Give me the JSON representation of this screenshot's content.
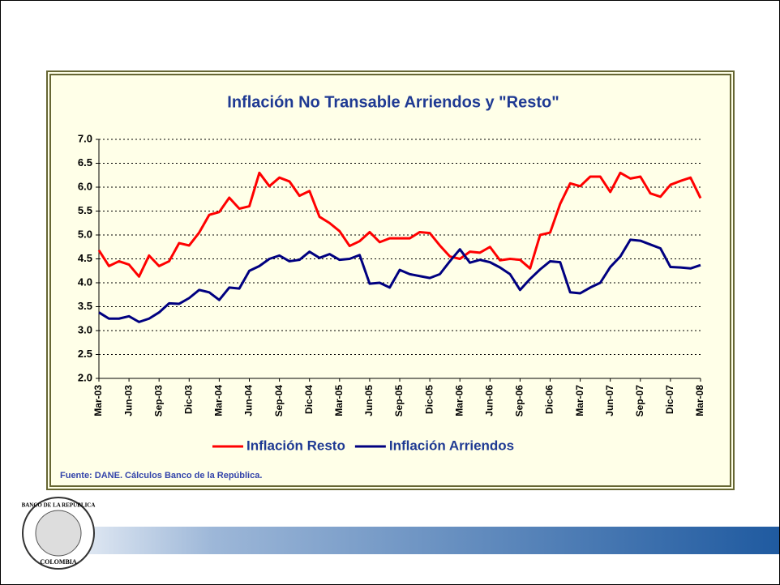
{
  "chart_data": {
    "type": "line",
    "title": "Inflación No Transable Arriendos y \"Resto\"",
    "categories": [
      "Mar-03",
      null,
      null,
      "Jun-03",
      null,
      null,
      "Sep-03",
      null,
      null,
      "Dic-03",
      null,
      null,
      "Mar-04",
      null,
      null,
      "Jun-04",
      null,
      null,
      "Sep-04",
      null,
      null,
      "Dic-04",
      null,
      null,
      "Mar-05",
      null,
      null,
      "Jun-05",
      null,
      null,
      "Sep-05",
      null,
      null,
      "Dic-05",
      null,
      null,
      "Mar-06",
      null,
      null,
      "Jun-06",
      null,
      null,
      "Sep-06",
      null,
      null,
      "Dic-06",
      null,
      null,
      "Mar-07",
      null,
      null,
      "Jun-07",
      null,
      null,
      "Sep-07",
      null,
      null,
      "Dic-07",
      null,
      null,
      "Mar-08"
    ],
    "series": [
      {
        "name": "Inflación Resto",
        "color": "#ff0000",
        "values": [
          4.68,
          4.35,
          4.45,
          4.38,
          4.13,
          4.57,
          4.35,
          4.45,
          4.83,
          4.78,
          5.05,
          5.42,
          5.48,
          5.78,
          5.55,
          5.6,
          6.3,
          6.02,
          6.2,
          6.12,
          5.82,
          5.92,
          5.38,
          5.25,
          5.08,
          4.77,
          4.87,
          5.06,
          4.85,
          4.93,
          4.93,
          4.93,
          5.06,
          5.04,
          4.78,
          4.55,
          4.5,
          4.65,
          4.63,
          4.75,
          4.47,
          4.5,
          4.48,
          4.3,
          5.0,
          5.05,
          5.65,
          6.08,
          6.02,
          6.22,
          6.22,
          5.9,
          6.3,
          6.18,
          6.22,
          5.87,
          5.8,
          6.05,
          6.13,
          6.2,
          5.77
        ]
      },
      {
        "name": "Inflación Arriendos",
        "color": "#000080",
        "values": [
          3.38,
          3.25,
          3.25,
          3.3,
          3.18,
          3.25,
          3.38,
          3.57,
          3.56,
          3.68,
          3.85,
          3.8,
          3.64,
          3.9,
          3.88,
          4.25,
          4.35,
          4.5,
          4.57,
          4.45,
          4.48,
          4.65,
          4.52,
          4.6,
          4.48,
          4.5,
          4.58,
          3.98,
          4.0,
          3.9,
          4.27,
          4.18,
          4.14,
          4.1,
          4.18,
          4.45,
          4.7,
          4.42,
          4.48,
          4.43,
          4.32,
          4.18,
          3.85,
          4.08,
          4.28,
          4.45,
          4.43,
          3.8,
          3.78,
          3.9,
          4.0,
          4.33,
          4.55,
          4.9,
          4.88,
          4.8,
          4.72,
          4.33,
          4.32,
          4.3,
          4.37
        ]
      }
    ],
    "ylim": [
      2,
      7
    ],
    "yticks": [
      {
        "value": 2,
        "label": "2.0"
      },
      2.5,
      {
        "value": 3,
        "label": "3.0"
      },
      3.5,
      {
        "value": 4,
        "label": "4.0"
      },
      4.5,
      {
        "value": 5,
        "label": "5.0"
      },
      5.5,
      {
        "value": 6,
        "label": "6.0"
      },
      6.5,
      {
        "value": 7,
        "label": "7.0"
      }
    ],
    "grid": true,
    "legend": "bottom"
  },
  "source": "Fuente: DANE. Cálculos Banco de la República.",
  "logo": {
    "top": "BANCO DE LA REPUBLICA",
    "bottom": "COLOMBIA"
  }
}
